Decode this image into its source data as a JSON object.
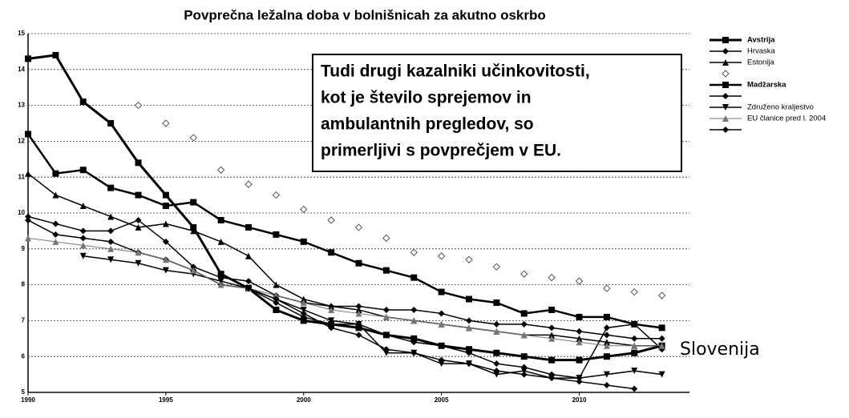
{
  "chart_data": {
    "type": "line",
    "title": "Povprečna ležalna doba v bolnišnicah za akutno oskrbo",
    "x": [
      1990,
      1991,
      1992,
      1993,
      1994,
      1995,
      1996,
      1997,
      1998,
      1999,
      2000,
      2001,
      2002,
      2003,
      2004,
      2005,
      2006,
      2007,
      2008,
      2009,
      2010,
      2011,
      2012,
      2013
    ],
    "xlim": [
      1990,
      2014
    ],
    "xticks": [
      1990,
      1995,
      2000,
      2005,
      2010
    ],
    "ylim": [
      5,
      15
    ],
    "yticks": [
      5,
      6,
      7,
      8,
      9,
      10,
      11,
      12,
      13,
      14,
      15
    ],
    "grid": true,
    "legend": "right",
    "annotation": [
      "Tudi drugi kazalniki učinkovitosti,",
      "kot je število sprejemov in",
      "ambulantnih pregledov, so",
      "primerljivi s povprečjem v EU."
    ],
    "label": "Slovenija",
    "series": [
      {
        "name": "Avstrija",
        "color": "#000000",
        "width": 3,
        "marker": "square",
        "values": [
          14.3,
          14.4,
          13.1,
          12.5,
          11.4,
          10.5,
          9.6,
          8.3,
          7.9,
          7.3,
          7.0,
          6.9,
          6.8,
          6.6,
          6.5,
          6.3,
          6.2,
          6.1,
          6.0,
          5.9,
          5.9,
          6.0,
          6.1,
          6.3
        ]
      },
      {
        "name": "Hrvaska",
        "color": "#000000",
        "width": 1.5,
        "marker": "diamond",
        "values": [
          9.9,
          9.7,
          9.5,
          9.5,
          9.8,
          9.2,
          8.5,
          8.2,
          8.1,
          7.7,
          7.5,
          7.4,
          7.4,
          7.3,
          7.3,
          7.2,
          7.0,
          6.9,
          6.9,
          6.8,
          6.7,
          6.6,
          6.5,
          6.5
        ]
      },
      {
        "name": "Estonija",
        "color": "#000000",
        "width": 1.5,
        "marker": "triangle",
        "values": [
          11.1,
          10.5,
          10.2,
          9.9,
          9.6,
          9.7,
          9.5,
          9.2,
          8.8,
          8.0,
          7.6,
          7.4,
          7.3,
          7.1,
          7.0,
          6.9,
          6.8,
          6.7,
          6.6,
          6.6,
          6.5,
          6.4,
          6.3,
          6.3
        ]
      },
      {
        "name": null,
        "color": "#555555",
        "width": 0,
        "marker": "open-diamond",
        "values": [
          null,
          null,
          null,
          null,
          13.0,
          12.5,
          12.1,
          11.2,
          10.8,
          10.5,
          10.1,
          9.8,
          9.6,
          9.3,
          8.9,
          8.8,
          8.7,
          8.5,
          8.3,
          8.2,
          8.1,
          7.9,
          7.8,
          7.7
        ]
      },
      {
        "name": "Madžarska",
        "color": "#000000",
        "width": 2.5,
        "marker": "square",
        "values": [
          12.2,
          11.1,
          11.2,
          10.7,
          10.5,
          10.2,
          10.3,
          9.8,
          9.6,
          9.4,
          9.2,
          8.9,
          8.6,
          8.4,
          8.2,
          7.8,
          7.6,
          7.5,
          7.2,
          7.3,
          7.1,
          7.1,
          6.9,
          6.8
        ]
      },
      {
        "name": null,
        "color": "#000000",
        "width": 1.5,
        "marker": "diamond",
        "values": [
          9.8,
          9.4,
          9.3,
          9.2,
          8.9,
          8.7,
          8.4,
          8.0,
          7.9,
          7.5,
          7.1,
          6.9,
          6.9,
          6.6,
          6.4,
          6.3,
          6.1,
          5.8,
          5.7,
          5.5,
          5.4,
          6.8,
          6.9,
          6.2
        ]
      },
      {
        "name": "Združeno kraljestvo",
        "color": "#000000",
        "width": 1.5,
        "marker": "triangle-down",
        "values": [
          null,
          null,
          8.8,
          8.7,
          8.6,
          8.4,
          8.3,
          8.1,
          7.9,
          7.6,
          7.3,
          7.0,
          6.9,
          6.1,
          6.1,
          5.8,
          5.8,
          5.5,
          5.6,
          5.4,
          5.4,
          5.5,
          5.6,
          5.5
        ]
      },
      {
        "name": "EU članice pred l. 2004",
        "color": "#777777",
        "width": 1,
        "marker": "triangle",
        "values": [
          9.3,
          9.2,
          9.1,
          9.0,
          8.9,
          8.7,
          8.4,
          8.0,
          7.9,
          7.7,
          7.5,
          7.3,
          7.2,
          7.1,
          7.0,
          6.9,
          6.8,
          6.7,
          6.6,
          6.5,
          6.4,
          6.3,
          6.3,
          6.3
        ]
      },
      {
        "name": null,
        "color": "#000000",
        "width": 1.5,
        "marker": "diamond",
        "values": [
          null,
          null,
          null,
          null,
          null,
          null,
          null,
          null,
          7.9,
          7.6,
          7.2,
          6.8,
          6.6,
          6.2,
          6.1,
          5.9,
          5.8,
          5.6,
          5.5,
          5.4,
          5.3,
          5.2,
          5.1,
          null
        ]
      }
    ]
  }
}
